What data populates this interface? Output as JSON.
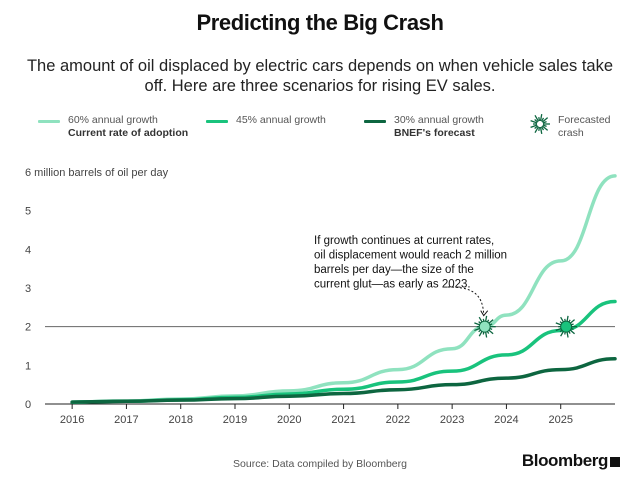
{
  "title": "Predicting the Big Crash",
  "subtitle": "The amount of oil displaced by electric cars depends on when vehicle sales take off. Here are three scenarios for rising EV sales.",
  "legend": [
    {
      "line1": "60% annual growth",
      "line2": "Current rate of adoption",
      "color": "#8fe2bf"
    },
    {
      "line1": "45% annual growth",
      "line2": "",
      "color": "#19c37d"
    },
    {
      "line1": "30% annual growth",
      "line2": "BNEF's forecast",
      "color": "#0d6640"
    },
    {
      "line1": "Forecasted",
      "line2": "crash",
      "icon": "burst-icon"
    }
  ],
  "annotation": "If growth continues at current rates, oil displacement would reach 2 million barrels per day—the size of the current glut—as early as 2023.",
  "source": "Source: Data compiled by Bloomberg",
  "brand": "Bloomberg",
  "chart_data": {
    "type": "line",
    "ylabel": "6 million barrels of oil per day",
    "ylim": [
      0,
      6
    ],
    "xlim": [
      2015.5,
      2026.0
    ],
    "x_ticks": [
      "2016",
      "2017",
      "2018",
      "2019",
      "2020",
      "2021",
      "2022",
      "2023",
      "2024",
      "2025"
    ],
    "y_ticks": [
      "0",
      "1",
      "2",
      "3",
      "4",
      "5"
    ],
    "reference_line": 2,
    "grid": false,
    "series": [
      {
        "name": "60% annual growth",
        "color": "#8fe2bf",
        "x": [
          2016,
          2017,
          2018,
          2019,
          2020,
          2021,
          2022,
          2023,
          2023.6,
          2024,
          2025,
          2026
        ],
        "y": [
          0.05,
          0.08,
          0.13,
          0.21,
          0.34,
          0.55,
          0.89,
          1.43,
          2.0,
          2.3,
          3.7,
          5.9
        ]
      },
      {
        "name": "45% annual growth",
        "color": "#19c37d",
        "x": [
          2016,
          2017,
          2018,
          2019,
          2020,
          2021,
          2022,
          2023,
          2024,
          2025,
          2026
        ],
        "y": [
          0.05,
          0.07,
          0.11,
          0.17,
          0.26,
          0.38,
          0.57,
          0.85,
          1.27,
          1.9,
          2.65
        ]
      },
      {
        "name": "30% annual growth",
        "color": "#0d6640",
        "x": [
          2016,
          2017,
          2018,
          2019,
          2020,
          2021,
          2022,
          2023,
          2024,
          2025,
          2026
        ],
        "y": [
          0.05,
          0.07,
          0.1,
          0.14,
          0.2,
          0.27,
          0.37,
          0.5,
          0.67,
          0.89,
          1.17
        ]
      }
    ],
    "crash_points": [
      {
        "x": 2023.6,
        "y": 2,
        "color": "#8fe2bf"
      },
      {
        "x": 2025.1,
        "y": 2,
        "color": "#19c37d"
      }
    ]
  }
}
